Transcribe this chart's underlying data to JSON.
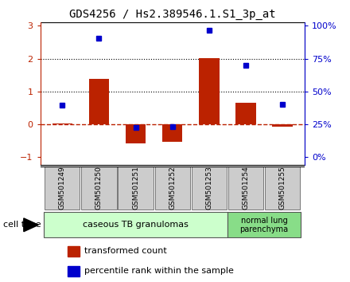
{
  "title": "GDS4256 / Hs2.389546.1.S1_3p_at",
  "samples": [
    "GSM501249",
    "GSM501250",
    "GSM501251",
    "GSM501252",
    "GSM501253",
    "GSM501254",
    "GSM501255"
  ],
  "red_bars": [
    0.02,
    1.38,
    -0.6,
    -0.55,
    2.02,
    0.65,
    -0.07
  ],
  "blue_dots": [
    0.58,
    2.63,
    -0.1,
    -0.07,
    2.87,
    1.8,
    0.6
  ],
  "ylim": [
    -1.25,
    3.1
  ],
  "yticks_left": [
    -1,
    0,
    1,
    2,
    3
  ],
  "yticks_right_vals": [
    -1,
    0,
    1,
    2,
    3
  ],
  "yticks_right_labels": [
    "0%",
    "25%",
    "50%",
    "75%",
    "100%"
  ],
  "hline_y": 0.0,
  "dotted_lines": [
    1.0,
    2.0
  ],
  "bar_color": "#bb2200",
  "dot_color": "#0000cc",
  "bar_width": 0.55,
  "group1_samples": [
    0,
    1,
    2,
    3,
    4
  ],
  "group2_samples": [
    5,
    6
  ],
  "group1_label": "caseous TB granulomas",
  "group2_label": "normal lung\nparenchyma",
  "group1_color": "#ccffcc",
  "group2_color": "#88dd88",
  "cell_type_label": "cell type",
  "legend_red": "transformed count",
  "legend_blue": "percentile rank within the sample",
  "title_fontsize": 10,
  "ylabel_left_color": "#bb2200",
  "ylabel_right_color": "#0000cc",
  "tick_labelsize": 8,
  "sample_fontsize": 6.5,
  "legend_fontsize": 8,
  "cell_type_fontsize": 8,
  "group1_fontsize": 8,
  "group2_fontsize": 7
}
